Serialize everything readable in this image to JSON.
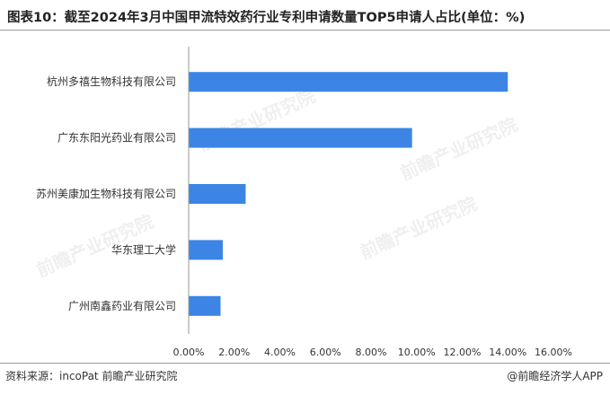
{
  "title": "图表10：截至2024年3月中国甲流特效药行业专利申请数量TOP5申请人占比(单位：%)",
  "footer": {
    "source": "资料来源：incoPat 前瞻产业研究院",
    "brand": "@前瞻经济学人APP"
  },
  "watermark": {
    "text": "前瞻产业研究院"
  },
  "colors": {
    "bar": "#3D85E4",
    "axis": "#999999",
    "text": "#333333"
  },
  "chart_data": {
    "type": "bar",
    "orientation": "horizontal",
    "title": "",
    "xlabel": "",
    "ylabel": "",
    "categories": [
      "杭州多禧生物科技有限公司",
      "广东东阳光药业有限公司",
      "苏州美康加生物科技有限公司",
      "华东理工大学",
      "广州南鑫药业有限公司"
    ],
    "values": [
      14.0,
      9.8,
      2.5,
      1.5,
      1.4
    ],
    "xlim": [
      0,
      16
    ],
    "xticks": [
      "0.00%",
      "2.00%",
      "4.00%",
      "6.00%",
      "8.00%",
      "10.00%",
      "12.00%",
      "14.00%",
      "16.00%"
    ],
    "grid": false,
    "legend": "none"
  }
}
